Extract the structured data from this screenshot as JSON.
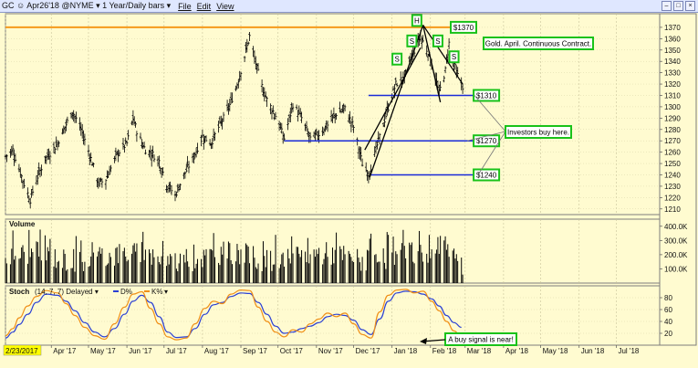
{
  "window": {
    "title": "GC ☺ Apr26'18 @NYME ▾  1 Year/Daily bars ▾",
    "menu": [
      "File",
      "Edit",
      "View"
    ]
  },
  "chart_data": [
    {
      "type": "bar",
      "panel": "price",
      "title": "",
      "y_axis_side": "right",
      "y_ticks": [
        1210,
        1220,
        1230,
        1240,
        1250,
        1260,
        1270,
        1280,
        1290,
        1300,
        1310,
        1320,
        1330,
        1340,
        1350,
        1360,
        1370
      ],
      "ylim": [
        1205,
        1382
      ],
      "x_date_range": [
        "2017-02-23",
        "2018-08-05"
      ],
      "x_ticks": [
        {
          "date": "2017-02-23",
          "label": "2/23/2017"
        },
        {
          "date": "2017-04-01",
          "label": "Apr '17"
        },
        {
          "date": "2017-05-01",
          "label": "May '17"
        },
        {
          "date": "2017-06-01",
          "label": "Jun '17"
        },
        {
          "date": "2017-07-01",
          "label": "Jul '17"
        },
        {
          "date": "2017-08-01",
          "label": "Aug '17"
        },
        {
          "date": "2017-09-01",
          "label": "Sep '17"
        },
        {
          "date": "2017-10-01",
          "label": "Oct '17"
        },
        {
          "date": "2017-11-01",
          "label": "Nov '17"
        },
        {
          "date": "2017-12-01",
          "label": "Dec '17"
        },
        {
          "date": "2018-01-01",
          "label": "Jan '18"
        },
        {
          "date": "2018-02-01",
          "label": "Feb '18"
        },
        {
          "date": "2018-03-01",
          "label": "Mar '18"
        },
        {
          "date": "2018-04-01",
          "label": "Apr '18"
        },
        {
          "date": "2018-05-01",
          "label": "May '18"
        },
        {
          "date": "2018-06-01",
          "label": "Jun '18"
        },
        {
          "date": "2018-07-01",
          "label": "Jul '18"
        }
      ],
      "anchors": [
        [
          "2017-02-23",
          1256
        ],
        [
          "2017-03-01",
          1262
        ],
        [
          "2017-03-10",
          1232
        ],
        [
          "2017-03-15",
          1218
        ],
        [
          "2017-03-20",
          1236
        ],
        [
          "2017-03-27",
          1254
        ],
        [
          "2017-04-05",
          1266
        ],
        [
          "2017-04-12",
          1282
        ],
        [
          "2017-04-18",
          1296
        ],
        [
          "2017-04-25",
          1280
        ],
        [
          "2017-05-02",
          1258
        ],
        [
          "2017-05-09",
          1232
        ],
        [
          "2017-05-15",
          1236
        ],
        [
          "2017-05-24",
          1258
        ],
        [
          "2017-06-01",
          1268
        ],
        [
          "2017-06-06",
          1290
        ],
        [
          "2017-06-10",
          1275
        ],
        [
          "2017-06-16",
          1262
        ],
        [
          "2017-06-22",
          1258
        ],
        [
          "2017-06-27",
          1252
        ],
        [
          "2017-07-03",
          1232
        ],
        [
          "2017-07-10",
          1222
        ],
        [
          "2017-07-18",
          1242
        ],
        [
          "2017-07-25",
          1256
        ],
        [
          "2017-08-01",
          1274
        ],
        [
          "2017-08-08",
          1268
        ],
        [
          "2017-08-14",
          1282
        ],
        [
          "2017-08-21",
          1296
        ],
        [
          "2017-08-28",
          1316
        ],
        [
          "2017-09-03",
          1340
        ],
        [
          "2017-09-08",
          1362
        ],
        [
          "2017-09-12",
          1342
        ],
        [
          "2017-09-18",
          1318
        ],
        [
          "2017-09-22",
          1306
        ],
        [
          "2017-09-29",
          1292
        ],
        [
          "2017-10-06",
          1272
        ],
        [
          "2017-10-13",
          1302
        ],
        [
          "2017-10-20",
          1290
        ],
        [
          "2017-10-27",
          1272
        ],
        [
          "2017-11-03",
          1276
        ],
        [
          "2017-11-10",
          1284
        ],
        [
          "2017-11-17",
          1294
        ],
        [
          "2017-11-24",
          1298
        ],
        [
          "2017-12-01",
          1282
        ],
        [
          "2017-12-08",
          1250
        ],
        [
          "2017-12-13",
          1240
        ],
        [
          "2017-12-20",
          1266
        ],
        [
          "2017-12-28",
          1296
        ],
        [
          "2018-01-04",
          1320
        ],
        [
          "2018-01-11",
          1326
        ],
        [
          "2018-01-16",
          1342
        ],
        [
          "2018-01-24",
          1362
        ],
        [
          "2018-01-30",
          1348
        ],
        [
          "2018-02-02",
          1338
        ],
        [
          "2018-02-08",
          1312
        ],
        [
          "2018-02-13",
          1332
        ],
        [
          "2018-02-16",
          1356
        ],
        [
          "2018-02-22",
          1330
        ],
        [
          "2018-02-27",
          1318
        ]
      ]
    },
    {
      "type": "bar",
      "panel": "volume",
      "title": "Volume",
      "y_ticks": [
        {
          "value": 100,
          "label": "100.0K"
        },
        {
          "value": 200,
          "label": "200.0K"
        },
        {
          "value": 300,
          "label": "300.0K"
        },
        {
          "value": 400,
          "label": "400.0K"
        }
      ],
      "ylim": [
        0,
        450
      ],
      "units": "thousands",
      "bar_color": "#000000"
    },
    {
      "type": "line",
      "panel": "stochastic",
      "title": "Stoch",
      "params": "(14, 7, 7) Delayed ▾",
      "legend": [
        {
          "name": "D%",
          "color": "#2a3fd4"
        },
        {
          "name": "K%",
          "color": "#f09018"
        }
      ],
      "y_ticks": [
        20,
        40,
        60,
        80
      ],
      "ylim": [
        0,
        100
      ],
      "series": [
        {
          "name": "D%",
          "color": "#2a3fd4",
          "points": [
            [
              "2017-02-23",
              12
            ],
            [
              "2017-03-01",
              22
            ],
            [
              "2017-03-06",
              35
            ],
            [
              "2017-03-13",
              52
            ],
            [
              "2017-03-20",
              72
            ],
            [
              "2017-03-28",
              86
            ],
            [
              "2017-04-06",
              84
            ],
            [
              "2017-04-13",
              74
            ],
            [
              "2017-04-20",
              58
            ],
            [
              "2017-04-28",
              38
            ],
            [
              "2017-05-06",
              22
            ],
            [
              "2017-05-14",
              14
            ],
            [
              "2017-05-22",
              28
            ],
            [
              "2017-05-30",
              52
            ],
            [
              "2017-06-06",
              74
            ],
            [
              "2017-06-13",
              84
            ],
            [
              "2017-06-20",
              72
            ],
            [
              "2017-06-27",
              48
            ],
            [
              "2017-07-04",
              22
            ],
            [
              "2017-07-11",
              13
            ],
            [
              "2017-07-19",
              14
            ],
            [
              "2017-07-26",
              28
            ],
            [
              "2017-08-03",
              52
            ],
            [
              "2017-08-10",
              68
            ],
            [
              "2017-08-17",
              72
            ],
            [
              "2017-08-24",
              82
            ],
            [
              "2017-09-01",
              88
            ],
            [
              "2017-09-08",
              87
            ],
            [
              "2017-09-15",
              72
            ],
            [
              "2017-09-22",
              52
            ],
            [
              "2017-09-29",
              32
            ],
            [
              "2017-10-06",
              20
            ],
            [
              "2017-10-13",
              22
            ],
            [
              "2017-10-20",
              28
            ],
            [
              "2017-10-27",
              32
            ],
            [
              "2017-11-03",
              38
            ],
            [
              "2017-11-10",
              48
            ],
            [
              "2017-11-17",
              52
            ],
            [
              "2017-11-24",
              50
            ],
            [
              "2017-12-01",
              42
            ],
            [
              "2017-12-08",
              26
            ],
            [
              "2017-12-15",
              18
            ],
            [
              "2017-12-22",
              44
            ],
            [
              "2017-12-29",
              74
            ],
            [
              "2018-01-05",
              88
            ],
            [
              "2018-01-12",
              91
            ],
            [
              "2018-01-19",
              90
            ],
            [
              "2018-01-26",
              86
            ],
            [
              "2018-02-02",
              78
            ],
            [
              "2018-02-08",
              66
            ],
            [
              "2018-02-14",
              50
            ],
            [
              "2018-02-20",
              38
            ],
            [
              "2018-02-26",
              30
            ]
          ]
        },
        {
          "name": "K%",
          "color": "#f09018",
          "points": [
            [
              "2017-02-23",
              16
            ],
            [
              "2017-03-01",
              28
            ],
            [
              "2017-03-06",
              46
            ],
            [
              "2017-03-13",
              66
            ],
            [
              "2017-03-20",
              82
            ],
            [
              "2017-03-28",
              92
            ],
            [
              "2017-04-06",
              88
            ],
            [
              "2017-04-13",
              70
            ],
            [
              "2017-04-20",
              50
            ],
            [
              "2017-04-28",
              30
            ],
            [
              "2017-05-06",
              16
            ],
            [
              "2017-05-14",
              10
            ],
            [
              "2017-05-22",
              36
            ],
            [
              "2017-05-30",
              64
            ],
            [
              "2017-06-06",
              86
            ],
            [
              "2017-06-13",
              90
            ],
            [
              "2017-06-20",
              62
            ],
            [
              "2017-06-27",
              36
            ],
            [
              "2017-07-04",
              14
            ],
            [
              "2017-07-11",
              9
            ],
            [
              "2017-07-19",
              12
            ],
            [
              "2017-07-26",
              36
            ],
            [
              "2017-08-03",
              62
            ],
            [
              "2017-08-10",
              74
            ],
            [
              "2017-08-17",
              70
            ],
            [
              "2017-08-24",
              86
            ],
            [
              "2017-09-01",
              93
            ],
            [
              "2017-09-08",
              92
            ],
            [
              "2017-09-15",
              64
            ],
            [
              "2017-09-22",
              40
            ],
            [
              "2017-09-29",
              22
            ],
            [
              "2017-10-06",
              14
            ],
            [
              "2017-10-13",
              26
            ],
            [
              "2017-10-20",
              22
            ],
            [
              "2017-10-27",
              36
            ],
            [
              "2017-11-03",
              44
            ],
            [
              "2017-11-10",
              54
            ],
            [
              "2017-11-17",
              48
            ],
            [
              "2017-11-24",
              54
            ],
            [
              "2017-12-01",
              36
            ],
            [
              "2017-12-08",
              18
            ],
            [
              "2017-12-15",
              12
            ],
            [
              "2017-12-22",
              56
            ],
            [
              "2017-12-29",
              84
            ],
            [
              "2018-01-05",
              93
            ],
            [
              "2018-01-12",
              94
            ],
            [
              "2018-01-19",
              88
            ],
            [
              "2018-01-26",
              91
            ],
            [
              "2018-02-02",
              74
            ],
            [
              "2018-02-08",
              58
            ],
            [
              "2018-02-14",
              40
            ],
            [
              "2018-02-20",
              24
            ],
            [
              "2018-02-26",
              12
            ]
          ]
        }
      ]
    }
  ],
  "overlays": {
    "resistance_line": {
      "value": 1370,
      "label": "$1370",
      "color": "#f59a1c"
    },
    "support_lines": [
      {
        "value": 1310,
        "from": "2017-12-13",
        "to": "2018-02-27",
        "label": "$1310",
        "color": "#1a2bd8"
      },
      {
        "value": 1270,
        "from": "2017-10-06",
        "to": "2018-02-27",
        "label": "$1270",
        "color": "#1a2bd8"
      },
      {
        "value": 1240,
        "from": "2017-12-15",
        "to": "2018-02-27",
        "label": "$1240",
        "color": "#1a2bd8"
      }
    ],
    "trend_lines": [
      {
        "points": [
          [
            "2017-12-10",
            1262
          ],
          [
            "2018-01-24",
            1352
          ]
        ]
      },
      {
        "points": [
          [
            "2017-12-14",
            1238
          ],
          [
            "2018-01-26",
            1372
          ]
        ]
      },
      {
        "points": [
          [
            "2018-01-26",
            1372
          ],
          [
            "2018-02-09",
            1304
          ]
        ]
      },
      {
        "points": [
          [
            "2018-01-26",
            1372
          ],
          [
            "2018-02-27",
            1320
          ]
        ]
      }
    ],
    "pattern_labels": [
      {
        "text": "H",
        "date": "2018-01-21",
        "value": 1376
      },
      {
        "text": "S",
        "date": "2018-01-05",
        "value": 1342
      },
      {
        "text": "S",
        "date": "2018-01-17",
        "value": 1358
      },
      {
        "text": "S",
        "date": "2018-02-07",
        "value": 1358
      },
      {
        "text": "S",
        "date": "2018-02-20",
        "value": 1344
      }
    ],
    "notes": [
      {
        "text": "Gold. April. Continuous Contract."
      },
      {
        "text": "Investors buy here."
      },
      {
        "text": "A buy signal is near!"
      }
    ],
    "note_color": "#19c219"
  }
}
